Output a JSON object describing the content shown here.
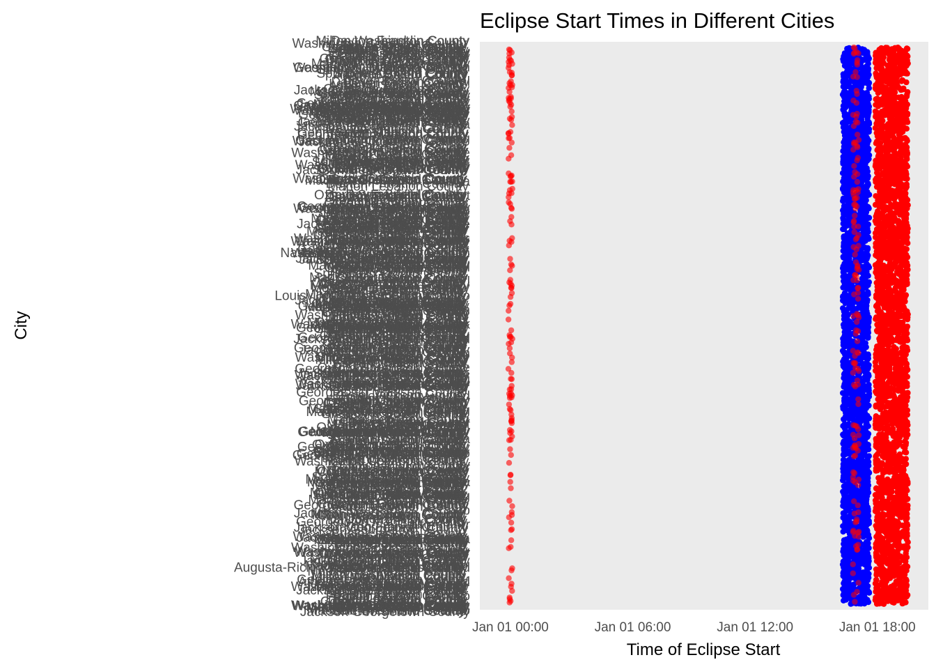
{
  "chart_data": {
    "type": "scatter",
    "title": "Eclipse Start Times in Different Cities",
    "xlabel": "Time of Eclipse Start",
    "ylabel": "City",
    "x_axis": {
      "unit": "hours",
      "domain_hours": [
        -1.5,
        20.5
      ],
      "ticks": [
        {
          "label": "Jan 01 00:00",
          "hours": 0
        },
        {
          "label": "Jan 01 06:00",
          "hours": 6
        },
        {
          "label": "Jan 01 12:00",
          "hours": 12
        },
        {
          "label": "Jan 01 18:00",
          "hours": 18
        }
      ]
    },
    "grid": false,
    "legend": "none",
    "panel_background": "#ebebeb",
    "city_label_color": "#4d4d4d",
    "series": [
      {
        "color": "#ff0000",
        "opacity": 0.6,
        "x_hours_range": [
          -0.1,
          0.1
        ],
        "density": "sparse"
      },
      {
        "color": "#0000ff",
        "opacity": 1.0,
        "x_hours_range": [
          16.3,
          17.6
        ],
        "density": "dense"
      },
      {
        "color": "#ff0000",
        "opacity": 1.0,
        "x_hours_range": [
          17.9,
          19.5
        ],
        "density": "dense"
      },
      {
        "color": "#ff0000",
        "opacity": 0.55,
        "x_hours_range": [
          16.8,
          17.1
        ],
        "density": "sparse"
      }
    ],
    "readable_city_labels": [
      "Woody",
      "William Paterson",
      "Wal",
      "University",
      "The University of",
      "Tama",
      "Spring",
      "Shore",
      "Rutgers University",
      "Rama",
      "Port",
      "Pompton",
      "Orange",
      "Nis",
      "Nashville-Davidson metropolitan",
      "Mississippi",
      "Marl",
      "Louisville/Jefferson County metro",
      "Lochm",
      "Lak",
      "King and",
      "Islam",
      "Home",
      "Hel",
      "Greeley County unified",
      "Georg",
      "Fetters Hot",
      "Encantada",
      "El Paso",
      "Dyer",
      "Cusseta",
      "Conning",
      "Chap",
      "California Pr",
      "Britannia",
      "Bellair",
      "Augusta-Richmond County consolidated",
      "Athens-Clarke County unified",
      "Anaco",
      "Abero"
    ]
  }
}
